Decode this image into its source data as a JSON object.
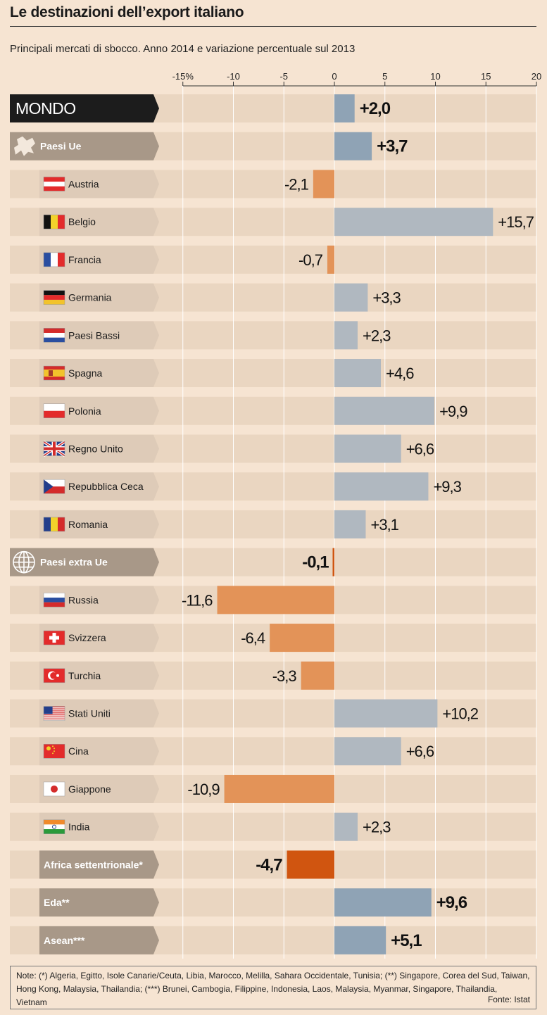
{
  "title": "Le destinazioni dell’export italiano",
  "subtitle": "Principali mercati di sbocco. Anno 2014 e variazione percentuale sul 2013",
  "notes": "Note: (*) Algeria, Egitto, Isole Canarie/Ceuta, Libia, Marocco, Melilla, Sahara Occidentale, Tunisia; (**) Singapore, Corea del Sud, Taiwan, Hong Kong, Malaysia, Thailandia; (***) Brunei, Cambogia, Filippine, Indonesia, Laos, Malaysia, Myanmar, Singapore, Thailandia, Vietnam",
  "source": "Fonte: Istat",
  "colors": {
    "positive": "#b0b8c0",
    "negative": "#e39358",
    "positive_total": "#8fa3b5",
    "negative_total": "#d05510",
    "row_band": "#ead6c1",
    "label_box": "#decbb8",
    "group_box": "#a89888",
    "mondo_box": "#1c1c1c",
    "grid": "#ffffff"
  },
  "chart_data": {
    "type": "bar",
    "orientation": "horizontal",
    "title": "Le destinazioni dell’export italiano",
    "xlim": [
      -15,
      20
    ],
    "ticks": [
      -15,
      -10,
      -5,
      0,
      5,
      10,
      15,
      20
    ],
    "tick_labels": [
      "-15%",
      "-10",
      "-5",
      "0",
      "5",
      "10",
      "15",
      "20"
    ],
    "rows": [
      {
        "label": "MONDO",
        "value": 2.0,
        "display": "+2,0",
        "kind": "mondo"
      },
      {
        "label": "Paesi Ue",
        "value": 3.7,
        "display": "+3,7",
        "kind": "group",
        "icon": "europe-map-icon"
      },
      {
        "label": "Austria",
        "value": -2.1,
        "display": "-2,1",
        "kind": "country",
        "flag": "austria"
      },
      {
        "label": "Belgio",
        "value": 15.7,
        "display": "+15,7",
        "kind": "country",
        "flag": "belgium"
      },
      {
        "label": "Francia",
        "value": -0.7,
        "display": "-0,7",
        "kind": "country",
        "flag": "france"
      },
      {
        "label": "Germania",
        "value": 3.3,
        "display": "+3,3",
        "kind": "country",
        "flag": "germany"
      },
      {
        "label": "Paesi Bassi",
        "value": 2.3,
        "display": "+2,3",
        "kind": "country",
        "flag": "netherlands"
      },
      {
        "label": "Spagna",
        "value": 4.6,
        "display": "+4,6",
        "kind": "country",
        "flag": "spain"
      },
      {
        "label": "Polonia",
        "value": 9.9,
        "display": "+9,9",
        "kind": "country",
        "flag": "poland"
      },
      {
        "label": "Regno Unito",
        "value": 6.6,
        "display": "+6,6",
        "kind": "country",
        "flag": "uk"
      },
      {
        "label": "Repubblica Ceca",
        "value": 9.3,
        "display": "+9,3",
        "kind": "country",
        "flag": "czech"
      },
      {
        "label": "Romania",
        "value": 3.1,
        "display": "+3,1",
        "kind": "country",
        "flag": "romania"
      },
      {
        "label": "Paesi extra Ue",
        "value": -0.1,
        "display": "-0,1",
        "kind": "group",
        "icon": "globe-icon"
      },
      {
        "label": "Russia",
        "value": -11.6,
        "display": "-11,6",
        "kind": "country",
        "flag": "russia"
      },
      {
        "label": "Svizzera",
        "value": -6.4,
        "display": "-6,4",
        "kind": "country",
        "flag": "switzerland"
      },
      {
        "label": "Turchia",
        "value": -3.3,
        "display": "-3,3",
        "kind": "country",
        "flag": "turkey"
      },
      {
        "label": "Stati Uniti",
        "value": 10.2,
        "display": "+10,2",
        "kind": "country",
        "flag": "usa"
      },
      {
        "label": "Cina",
        "value": 6.6,
        "display": "+6,6",
        "kind": "country",
        "flag": "china"
      },
      {
        "label": "Giappone",
        "value": -10.9,
        "display": "-10,9",
        "kind": "country",
        "flag": "japan"
      },
      {
        "label": "India",
        "value": 2.3,
        "display": "+2,3",
        "kind": "country",
        "flag": "india"
      },
      {
        "label": "Africa settentrionale*",
        "value": -4.7,
        "display": "-4,7",
        "kind": "area"
      },
      {
        "label": "Eda**",
        "value": 9.6,
        "display": "+9,6",
        "kind": "area"
      },
      {
        "label": "Asean***",
        "value": 5.1,
        "display": "+5,1",
        "kind": "area"
      }
    ]
  }
}
